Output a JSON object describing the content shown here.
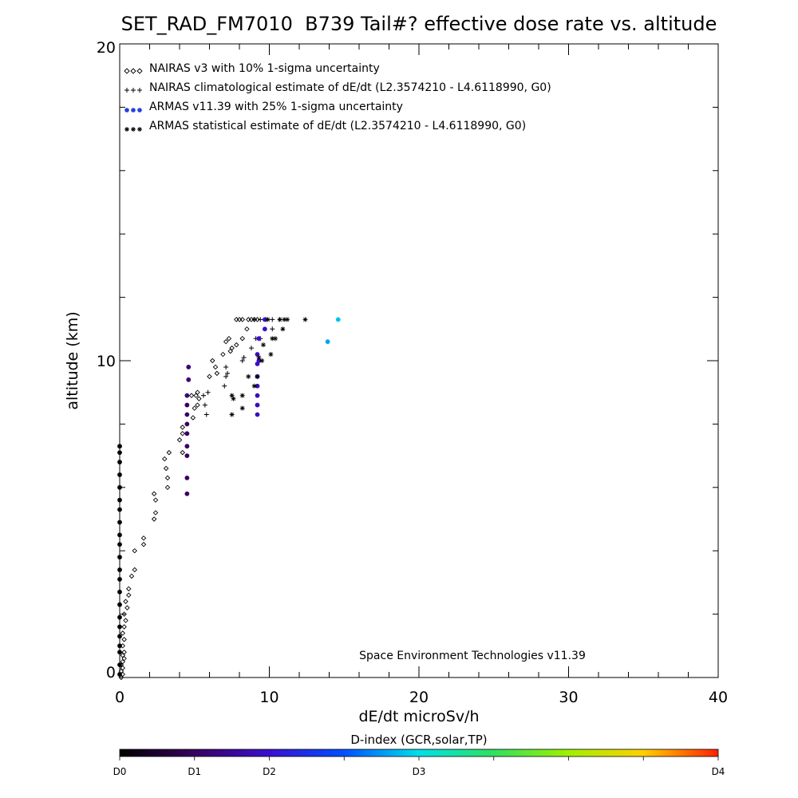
{
  "chart_data": {
    "type": "scatter",
    "title": "SET_RAD_FM7010  B739 Tail#? effective dose rate vs. altitude",
    "xlabel": "dE/dt microSv/h",
    "ylabel": "altitude (km)",
    "xlim": [
      0,
      40
    ],
    "ylim": [
      0,
      20
    ],
    "x_ticks": [
      0,
      10,
      20,
      30,
      40
    ],
    "y_ticks": [
      0,
      10,
      20
    ],
    "grid": false,
    "legend_position": "top-left",
    "annotation": "Space Environment Technologies v11.39",
    "colorbar": {
      "title": "D-index (GCR,solar,TP)",
      "labels": [
        {
          "text": "D0",
          "value": 0
        },
        {
          "text": "D1",
          "value": 1
        },
        {
          "text": "D2",
          "value": 2
        },
        {
          "text": "D3",
          "value": 3
        },
        {
          "text": "D4",
          "value": 4
        }
      ]
    },
    "series": [
      {
        "name": "NAIRAS v3 with 10% 1-sigma uncertainty",
        "marker": "diamond",
        "color": "#000000",
        "points": [
          [
            0.1,
            0.0
          ],
          [
            0.2,
            0.1
          ],
          [
            0.1,
            0.2
          ],
          [
            0.2,
            0.3
          ],
          [
            0.1,
            0.4
          ],
          [
            0.2,
            0.5
          ],
          [
            0.3,
            0.6
          ],
          [
            0.2,
            0.7
          ],
          [
            0.3,
            0.8
          ],
          [
            0.2,
            1.0
          ],
          [
            0.3,
            1.2
          ],
          [
            0.2,
            1.4
          ],
          [
            0.3,
            1.6
          ],
          [
            0.4,
            1.8
          ],
          [
            0.3,
            2.0
          ],
          [
            0.5,
            2.2
          ],
          [
            0.4,
            2.4
          ],
          [
            0.6,
            2.6
          ],
          [
            0.6,
            2.8
          ],
          [
            0.8,
            3.2
          ],
          [
            1.0,
            3.4
          ],
          [
            1.0,
            4.0
          ],
          [
            1.6,
            4.2
          ],
          [
            1.6,
            4.4
          ],
          [
            2.3,
            5.0
          ],
          [
            2.4,
            5.2
          ],
          [
            2.4,
            5.6
          ],
          [
            2.3,
            5.8
          ],
          [
            3.2,
            6.0
          ],
          [
            3.2,
            6.3
          ],
          [
            3.1,
            6.6
          ],
          [
            3.0,
            6.9
          ],
          [
            3.3,
            7.1
          ],
          [
            4.2,
            7.1
          ],
          [
            4.0,
            7.5
          ],
          [
            4.2,
            7.7
          ],
          [
            4.2,
            7.9
          ],
          [
            4.9,
            8.2
          ],
          [
            5.0,
            8.5
          ],
          [
            5.2,
            8.6
          ],
          [
            5.3,
            8.8
          ],
          [
            4.8,
            8.9
          ],
          [
            5.1,
            8.9
          ],
          [
            5.2,
            9.0
          ],
          [
            6.0,
            9.5
          ],
          [
            6.5,
            9.6
          ],
          [
            6.4,
            9.8
          ],
          [
            6.2,
            10.0
          ],
          [
            6.9,
            10.2
          ],
          [
            7.4,
            10.3
          ],
          [
            7.5,
            10.4
          ],
          [
            7.8,
            10.5
          ],
          [
            7.1,
            10.6
          ],
          [
            7.3,
            10.7
          ],
          [
            8.2,
            10.7
          ],
          [
            8.5,
            11.0
          ],
          [
            7.8,
            11.3
          ],
          [
            8.0,
            11.3
          ],
          [
            8.2,
            11.3
          ],
          [
            8.6,
            11.3
          ],
          [
            8.8,
            11.3
          ],
          [
            9.0,
            11.3
          ],
          [
            9.2,
            11.3
          ]
        ]
      },
      {
        "name": "NAIRAS climatological estimate of dE/dt (L2.3574210 - L4.6118990, G0)",
        "marker": "plus",
        "color": "#000000",
        "points": [
          [
            5.8,
            8.3
          ],
          [
            5.7,
            8.6
          ],
          [
            5.6,
            8.9
          ],
          [
            5.9,
            9.0
          ],
          [
            7.0,
            9.2
          ],
          [
            7.1,
            9.5
          ],
          [
            7.2,
            9.6
          ],
          [
            7.1,
            9.8
          ],
          [
            8.2,
            10.0
          ],
          [
            8.3,
            10.1
          ],
          [
            8.8,
            10.4
          ],
          [
            9.1,
            10.7
          ],
          [
            9.4,
            10.7
          ],
          [
            10.2,
            11.0
          ],
          [
            9.0,
            11.3
          ],
          [
            9.4,
            11.3
          ],
          [
            9.8,
            11.3
          ],
          [
            10.2,
            11.3
          ],
          [
            10.7,
            11.3
          ]
        ]
      },
      {
        "name": "ARMAS v11.39 with 25% 1-sigma uncertainty",
        "marker": "dot",
        "points": [
          {
            "x": 0.0,
            "y": 0.1,
            "d": 0.05
          },
          {
            "x": 0.0,
            "y": 0.4,
            "d": 0.05
          },
          {
            "x": 0.0,
            "y": 0.8,
            "d": 0.05
          },
          {
            "x": 0.0,
            "y": 1.0,
            "d": 0.05
          },
          {
            "x": 0.0,
            "y": 1.3,
            "d": 0.05
          },
          {
            "x": 0.0,
            "y": 1.6,
            "d": 0.05
          },
          {
            "x": 0.0,
            "y": 1.9,
            "d": 0.05
          },
          {
            "x": 0.0,
            "y": 2.3,
            "d": 0.05
          },
          {
            "x": 0.0,
            "y": 2.7,
            "d": 0.05
          },
          {
            "x": 0.0,
            "y": 3.1,
            "d": 0.05
          },
          {
            "x": 0.0,
            "y": 3.4,
            "d": 0.05
          },
          {
            "x": 0.0,
            "y": 3.8,
            "d": 0.05
          },
          {
            "x": 0.0,
            "y": 4.2,
            "d": 0.05
          },
          {
            "x": 0.0,
            "y": 4.5,
            "d": 0.05
          },
          {
            "x": 0.0,
            "y": 4.9,
            "d": 0.05
          },
          {
            "x": 0.0,
            "y": 5.3,
            "d": 0.05
          },
          {
            "x": 0.0,
            "y": 5.6,
            "d": 0.05
          },
          {
            "x": 0.0,
            "y": 6.0,
            "d": 0.05
          },
          {
            "x": 0.0,
            "y": 6.4,
            "d": 0.05
          },
          {
            "x": 0.0,
            "y": 6.8,
            "d": 0.05
          },
          {
            "x": 0.0,
            "y": 7.1,
            "d": 0.05
          },
          {
            "x": 0.0,
            "y": 7.3,
            "d": 0.05
          },
          {
            "x": 4.5,
            "y": 5.8,
            "d": 0.5
          },
          {
            "x": 4.5,
            "y": 6.3,
            "d": 0.5
          },
          {
            "x": 4.5,
            "y": 7.0,
            "d": 0.5
          },
          {
            "x": 4.5,
            "y": 7.3,
            "d": 0.5
          },
          {
            "x": 4.5,
            "y": 7.7,
            "d": 0.5
          },
          {
            "x": 4.5,
            "y": 8.0,
            "d": 0.5
          },
          {
            "x": 4.5,
            "y": 8.3,
            "d": 0.5
          },
          {
            "x": 4.5,
            "y": 8.6,
            "d": 0.5
          },
          {
            "x": 4.5,
            "y": 8.9,
            "d": 0.6
          },
          {
            "x": 4.6,
            "y": 9.4,
            "d": 0.6
          },
          {
            "x": 4.6,
            "y": 9.8,
            "d": 0.6
          },
          {
            "x": 9.2,
            "y": 8.3,
            "d": 0.9
          },
          {
            "x": 9.2,
            "y": 8.6,
            "d": 0.9
          },
          {
            "x": 9.2,
            "y": 8.9,
            "d": 0.9
          },
          {
            "x": 9.2,
            "y": 9.2,
            "d": 0.9
          },
          {
            "x": 9.2,
            "y": 9.5,
            "d": 0.95
          },
          {
            "x": 9.2,
            "y": 9.9,
            "d": 0.95
          },
          {
            "x": 9.3,
            "y": 10.0,
            "d": 0.95
          },
          {
            "x": 9.2,
            "y": 10.2,
            "d": 0.95
          },
          {
            "x": 9.3,
            "y": 10.7,
            "d": 1.0
          },
          {
            "x": 9.7,
            "y": 11.0,
            "d": 1.0
          },
          {
            "x": 9.7,
            "y": 11.3,
            "d": 1.0
          },
          {
            "x": 13.9,
            "y": 10.6,
            "d": 1.8
          },
          {
            "x": 14.6,
            "y": 11.3,
            "d": 1.9
          }
        ]
      },
      {
        "name": "ARMAS statistical estimate of dE/dt (L2.3574210 - L4.6118990, G0)",
        "marker": "asterisk",
        "color": "#000000",
        "points": [
          [
            7.5,
            8.3
          ],
          [
            8.2,
            8.5
          ],
          [
            7.6,
            8.8
          ],
          [
            7.5,
            8.9
          ],
          [
            8.2,
            8.9
          ],
          [
            9.0,
            9.2
          ],
          [
            9.2,
            9.5
          ],
          [
            8.6,
            9.5
          ],
          [
            9.5,
            10.0
          ],
          [
            9.3,
            10.1
          ],
          [
            10.1,
            10.2
          ],
          [
            9.6,
            10.5
          ],
          [
            10.4,
            10.7
          ],
          [
            10.2,
            10.7
          ],
          [
            10.9,
            11.0
          ],
          [
            9.9,
            11.3
          ],
          [
            10.7,
            11.3
          ],
          [
            11.0,
            11.3
          ],
          [
            11.2,
            11.3
          ],
          [
            12.4,
            11.3
          ]
        ]
      }
    ]
  }
}
